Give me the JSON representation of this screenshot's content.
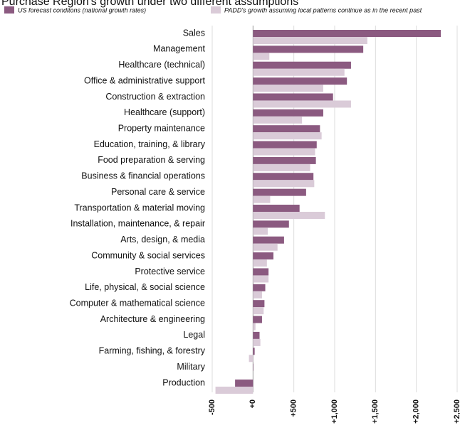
{
  "chart_data": {
    "type": "bar",
    "orientation": "horizontal",
    "title": "Purchase Region's growth under two different assumptions",
    "categories": [
      "Sales",
      "Management",
      "Healthcare (technical)",
      "Office & administrative support",
      "Construction & extraction",
      "Healthcare (support)",
      "Property maintenance",
      "Education, training, & library",
      "Food preparation & serving",
      "Business & financial operations",
      "Personal care & service",
      "Transportation & material moving",
      "Installation, maintenance, & repair",
      "Arts, design, & media",
      "Community & social services",
      "Protective service",
      "Life, physical, & social science",
      "Computer & mathematical science",
      "Architecture & engineering",
      "Legal",
      "Farming, fishing, & forestry",
      "Military",
      "Production"
    ],
    "series": [
      {
        "name": "US forecast conditons (national growth rates)",
        "color": "#8b5a80",
        "values": [
          2300,
          1350,
          1200,
          1150,
          980,
          860,
          820,
          780,
          770,
          740,
          650,
          570,
          440,
          380,
          250,
          190,
          150,
          140,
          110,
          80,
          20,
          5,
          -220
        ]
      },
      {
        "name": "PADD's growth assuming local patterns continue as in the recent past",
        "color": "#dacbd8",
        "values": [
          1400,
          200,
          1120,
          860,
          1200,
          600,
          840,
          760,
          700,
          750,
          210,
          880,
          180,
          300,
          170,
          190,
          110,
          130,
          30,
          90,
          -50,
          0,
          -460
        ]
      }
    ],
    "xlim": [
      -500,
      2500
    ],
    "xticks": [
      -500,
      {
        "value": 0,
        "label": "+0"
      },
      {
        "value": 500,
        "label": "+500"
      },
      {
        "value": 1000,
        "label": "+1,000"
      },
      {
        "value": 1500,
        "label": "+1,500"
      },
      {
        "value": 2000,
        "label": "+2,000"
      },
      {
        "value": 2500,
        "label": "+2,500"
      }
    ],
    "grid": true,
    "legend": "top"
  }
}
